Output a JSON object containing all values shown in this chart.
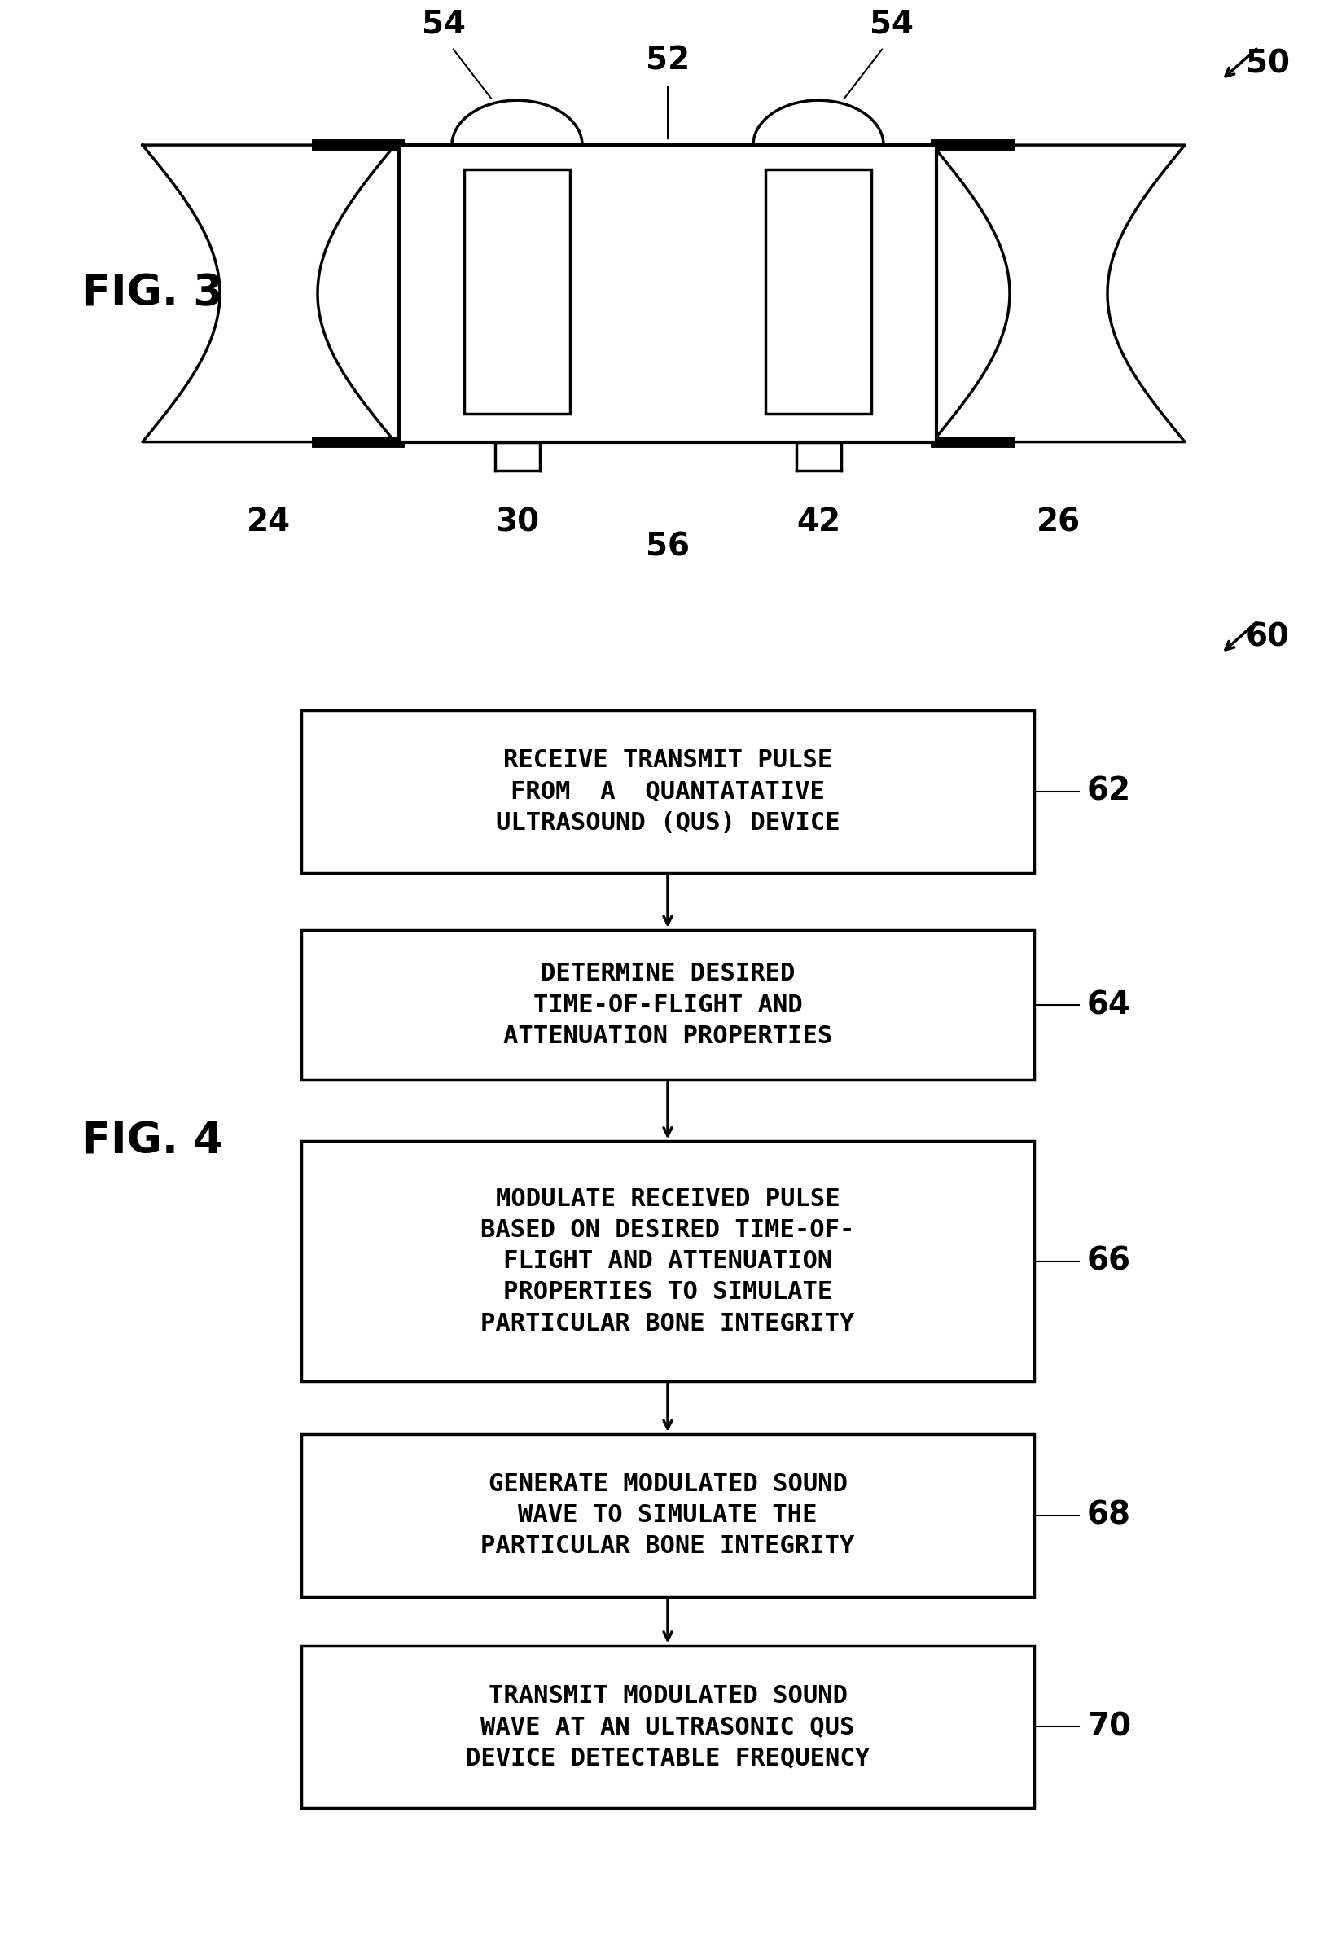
{
  "fig_width": 16.37,
  "fig_height": 23.92,
  "bg_color": "#ffffff",
  "fig3_label": "FIG. 3",
  "fig4_label": "FIG. 4",
  "label_50": "50",
  "label_60": "60",
  "label_52": "52",
  "label_54a": "54",
  "label_54b": "54",
  "label_24": "24",
  "label_26": "26",
  "label_30": "30",
  "label_42": "42",
  "label_56": "56",
  "label_62": "62",
  "label_64": "64",
  "label_66": "66",
  "label_68": "68",
  "label_70": "70",
  "box1_text": "RECEIVE TRANSMIT PULSE\nFROM  A  QUANTATATIVE\nULTRASOUND (QUS) DEVICE",
  "box2_text": "DETERMINE DESIRED\nTIME-OF-FLIGHT AND\nATTENUATION PROPERTIES",
  "box3_text": "MODULATE RECEIVED PULSE\nBASED ON DESIRED TIME-OF-\nFLIGHT AND ATTENUATION\nPROPERTIES TO SIMULATE\nPARTICULAR BONE INTEGRITY",
  "box4_text": "GENERATE MODULATED SOUND\nWAVE TO SIMULATE THE\nPARTICULAR BONE INTEGRITY",
  "box5_text": "TRANSMIT MODULATED SOUND\nWAVE AT AN ULTRASONIC QUS\nDEVICE DETECTABLE FREQUENCY",
  "text_color": "#000000",
  "line_color": "#000000"
}
